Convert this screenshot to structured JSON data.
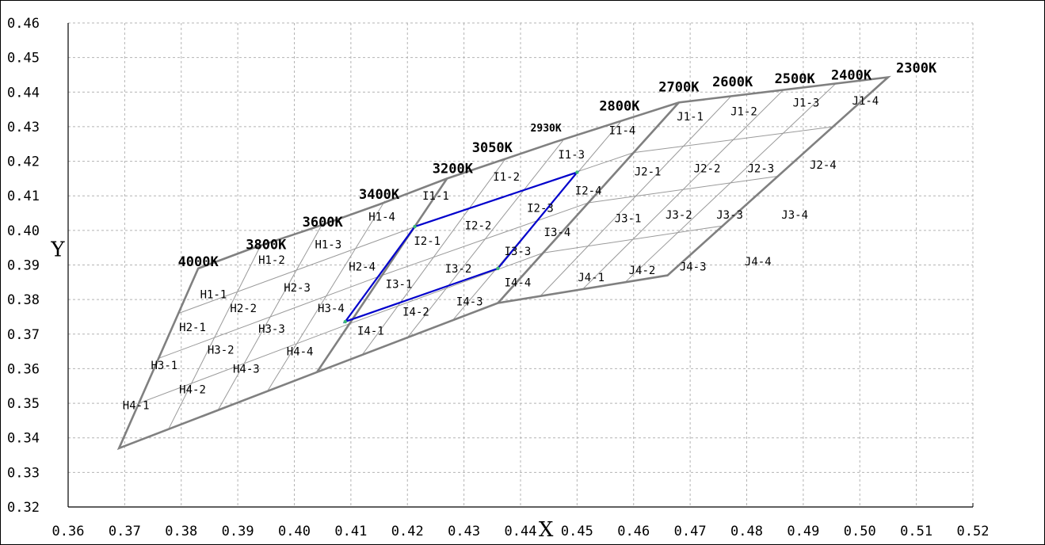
{
  "chart_data": {
    "type": "scatter",
    "title": "",
    "xlabel": "X",
    "ylabel": "Y",
    "xlim": [
      0.36,
      0.52
    ],
    "ylim": [
      0.32,
      0.46
    ],
    "grid": true,
    "x_tick_labels": [
      "0.36",
      "0.37",
      "0.38",
      "0.39",
      "0.40",
      "0.41",
      "0.42",
      "0.43",
      "0.44",
      "0.45",
      "0.46",
      "0.47",
      "0.48",
      "0.49",
      "0.50",
      "0.51",
      "0.52"
    ],
    "y_tick_labels": [
      "0.32",
      "0.33",
      "0.34",
      "0.35",
      "0.36",
      "0.37",
      "0.38",
      "0.39",
      "0.40",
      "0.41",
      "0.42",
      "0.43",
      "0.44",
      "0.45",
      "0.46"
    ],
    "boundary_colors": {
      "outline": "#808080",
      "highlight": "#0000cc",
      "bin_lines": "#9a9a9a"
    },
    "outline": [
      [
        0.383,
        0.389
      ],
      [
        0.392,
        0.3945
      ],
      [
        0.403,
        0.4005
      ],
      [
        0.415,
        0.4075
      ],
      [
        0.427,
        0.415
      ],
      [
        0.446,
        0.4255
      ],
      [
        0.468,
        0.437
      ],
      [
        0.505,
        0.4443
      ],
      [
        0.466,
        0.387
      ],
      [
        0.436,
        0.379
      ],
      [
        0.404,
        0.359
      ],
      [
        0.369,
        0.337
      ]
    ],
    "main_dividers": [
      [
        [
          0.427,
          0.415
        ],
        [
          0.404,
          0.359
        ]
      ],
      [
        [
          0.468,
          0.437
        ],
        [
          0.436,
          0.379
        ]
      ]
    ],
    "highlight_polygon": [
      [
        0.4213,
        0.4011
      ],
      [
        0.45,
        0.4168
      ],
      [
        0.436,
        0.389
      ],
      [
        0.409,
        0.3736
      ]
    ],
    "bins": [
      {
        "label": "H1-1",
        "x": 0.3857,
        "y": 0.3815
      },
      {
        "label": "H1-2",
        "x": 0.396,
        "y": 0.3915
      },
      {
        "label": "H1-3",
        "x": 0.406,
        "y": 0.396
      },
      {
        "label": "H1-4",
        "x": 0.4155,
        "y": 0.404
      },
      {
        "label": "H2-1",
        "x": 0.382,
        "y": 0.372
      },
      {
        "label": "H2-2",
        "x": 0.391,
        "y": 0.3775
      },
      {
        "label": "H2-3",
        "x": 0.4005,
        "y": 0.3835
      },
      {
        "label": "H2-4",
        "x": 0.412,
        "y": 0.3895
      },
      {
        "label": "H3-1",
        "x": 0.377,
        "y": 0.361
      },
      {
        "label": "H3-2",
        "x": 0.387,
        "y": 0.3655
      },
      {
        "label": "H3-3",
        "x": 0.396,
        "y": 0.3715
      },
      {
        "label": "H3-4",
        "x": 0.4065,
        "y": 0.3775
      },
      {
        "label": "H4-1",
        "x": 0.372,
        "y": 0.3495
      },
      {
        "label": "H4-2",
        "x": 0.382,
        "y": 0.354
      },
      {
        "label": "H4-3",
        "x": 0.3915,
        "y": 0.36
      },
      {
        "label": "H4-4",
        "x": 0.401,
        "y": 0.365
      },
      {
        "label": "I1-1",
        "x": 0.425,
        "y": 0.41
      },
      {
        "label": "I1-2",
        "x": 0.4375,
        "y": 0.4155
      },
      {
        "label": "I1-3",
        "x": 0.449,
        "y": 0.422
      },
      {
        "label": "I1-4",
        "x": 0.458,
        "y": 0.429
      },
      {
        "label": "I2-1",
        "x": 0.4235,
        "y": 0.397
      },
      {
        "label": "I2-2",
        "x": 0.4325,
        "y": 0.4015
      },
      {
        "label": "I2-3",
        "x": 0.4435,
        "y": 0.4065
      },
      {
        "label": "I2-4",
        "x": 0.452,
        "y": 0.4115
      },
      {
        "label": "I3-1",
        "x": 0.4185,
        "y": 0.3845
      },
      {
        "label": "I3-2",
        "x": 0.429,
        "y": 0.389
      },
      {
        "label": "I3-3",
        "x": 0.4395,
        "y": 0.394
      },
      {
        "label": "I3-4",
        "x": 0.4465,
        "y": 0.3995
      },
      {
        "label": "I4-1",
        "x": 0.4135,
        "y": 0.371
      },
      {
        "label": "I4-2",
        "x": 0.4215,
        "y": 0.3765
      },
      {
        "label": "I4-3",
        "x": 0.431,
        "y": 0.3795
      },
      {
        "label": "I4-4",
        "x": 0.4395,
        "y": 0.385
      },
      {
        "label": "J1-1",
        "x": 0.47,
        "y": 0.433
      },
      {
        "label": "J1-2",
        "x": 0.4795,
        "y": 0.4345
      },
      {
        "label": "J1-3",
        "x": 0.4905,
        "y": 0.437
      },
      {
        "label": "J1-4",
        "x": 0.501,
        "y": 0.4375
      },
      {
        "label": "J2-1",
        "x": 0.4625,
        "y": 0.417
      },
      {
        "label": "J2-2",
        "x": 0.473,
        "y": 0.418
      },
      {
        "label": "J2-3",
        "x": 0.4825,
        "y": 0.418
      },
      {
        "label": "J2-4",
        "x": 0.4935,
        "y": 0.419
      },
      {
        "label": "J3-1",
        "x": 0.459,
        "y": 0.4035
      },
      {
        "label": "J3-2",
        "x": 0.468,
        "y": 0.4045
      },
      {
        "label": "J3-3",
        "x": 0.477,
        "y": 0.4045
      },
      {
        "label": "J3-4",
        "x": 0.4885,
        "y": 0.4045
      },
      {
        "label": "J4-1",
        "x": 0.4525,
        "y": 0.3865
      },
      {
        "label": "J4-2",
        "x": 0.4615,
        "y": 0.3885
      },
      {
        "label": "J4-3",
        "x": 0.4705,
        "y": 0.3895
      },
      {
        "label": "J4-4",
        "x": 0.482,
        "y": 0.391
      }
    ],
    "cct_labels": [
      {
        "label": "4000K",
        "x": 0.383,
        "y": 0.391,
        "small": false
      },
      {
        "label": "3800K",
        "x": 0.395,
        "y": 0.396,
        "small": false
      },
      {
        "label": "3600K",
        "x": 0.405,
        "y": 0.4025,
        "small": false
      },
      {
        "label": "3400K",
        "x": 0.415,
        "y": 0.4105,
        "small": false
      },
      {
        "label": "3200K",
        "x": 0.428,
        "y": 0.418,
        "small": false
      },
      {
        "label": "3050K",
        "x": 0.435,
        "y": 0.424,
        "small": false
      },
      {
        "label": "2930K",
        "x": 0.4445,
        "y": 0.43,
        "small": true
      },
      {
        "label": "2800K",
        "x": 0.4575,
        "y": 0.436,
        "small": false
      },
      {
        "label": "2700K",
        "x": 0.468,
        "y": 0.4415,
        "small": false
      },
      {
        "label": "2600K",
        "x": 0.4775,
        "y": 0.443,
        "small": false
      },
      {
        "label": "2500K",
        "x": 0.4885,
        "y": 0.444,
        "small": false
      },
      {
        "label": "2400K",
        "x": 0.4985,
        "y": 0.445,
        "small": false
      },
      {
        "label": "2300K",
        "x": 0.51,
        "y": 0.447,
        "small": false
      }
    ]
  }
}
